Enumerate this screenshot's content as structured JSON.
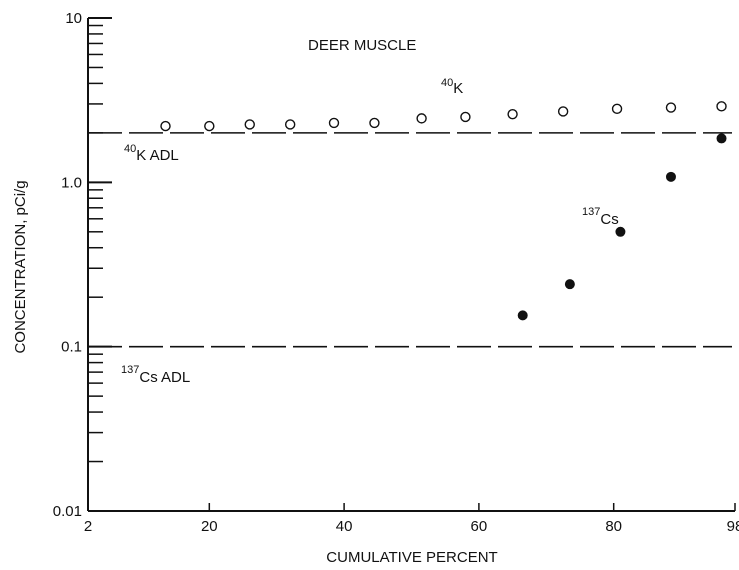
{
  "chart_data": {
    "type": "scatter",
    "title": "DEER MUSCLE",
    "xlabel": "CUMULATIVE PERCENT",
    "ylabel": "CONCENTRATION, pCi/g",
    "xlim": [
      2,
      98
    ],
    "ylim": [
      0.01,
      10
    ],
    "y_scale": "log",
    "x_ticks": [
      {
        "value": 2,
        "label": "2"
      },
      {
        "value": 20,
        "label": "20"
      },
      {
        "value": 40,
        "label": "40"
      },
      {
        "value": 60,
        "label": "60"
      },
      {
        "value": 80,
        "label": "80"
      },
      {
        "value": 98,
        "label": "98"
      }
    ],
    "y_ticks": [
      {
        "value": 0.01,
        "label": "0.01"
      },
      {
        "value": 0.1,
        "label": "0.1"
      },
      {
        "value": 1,
        "label": "1.0"
      },
      {
        "value": 10,
        "label": "10"
      }
    ],
    "series": [
      {
        "name": "40K",
        "marker": "open-circle",
        "x": [
          13.5,
          20,
          26,
          32,
          38.5,
          44.5,
          51.5,
          58,
          65,
          72.5,
          80.5,
          88.5,
          96
        ],
        "y": [
          2.2,
          2.2,
          2.25,
          2.25,
          2.3,
          2.3,
          2.45,
          2.5,
          2.6,
          2.7,
          2.8,
          2.85,
          2.9
        ]
      },
      {
        "name": "137Cs",
        "marker": "filled-circle",
        "x": [
          66.5,
          73.5,
          81,
          88.5,
          96
        ],
        "y": [
          0.155,
          0.24,
          0.5,
          1.08,
          1.85
        ]
      }
    ],
    "reference_lines": [
      {
        "name": "40K ADL",
        "y": 2.0
      },
      {
        "name": "137Cs ADL",
        "y": 0.1
      }
    ],
    "annotations": {
      "k40_series": {
        "sup": "40",
        "base": "K"
      },
      "cs137_series": {
        "sup": "137",
        "base": "Cs"
      },
      "k40_adl": {
        "sup": "40",
        "base": "K ADL"
      },
      "cs137_adl": {
        "sup": "137",
        "base": "Cs ADL"
      }
    },
    "grid": false
  }
}
